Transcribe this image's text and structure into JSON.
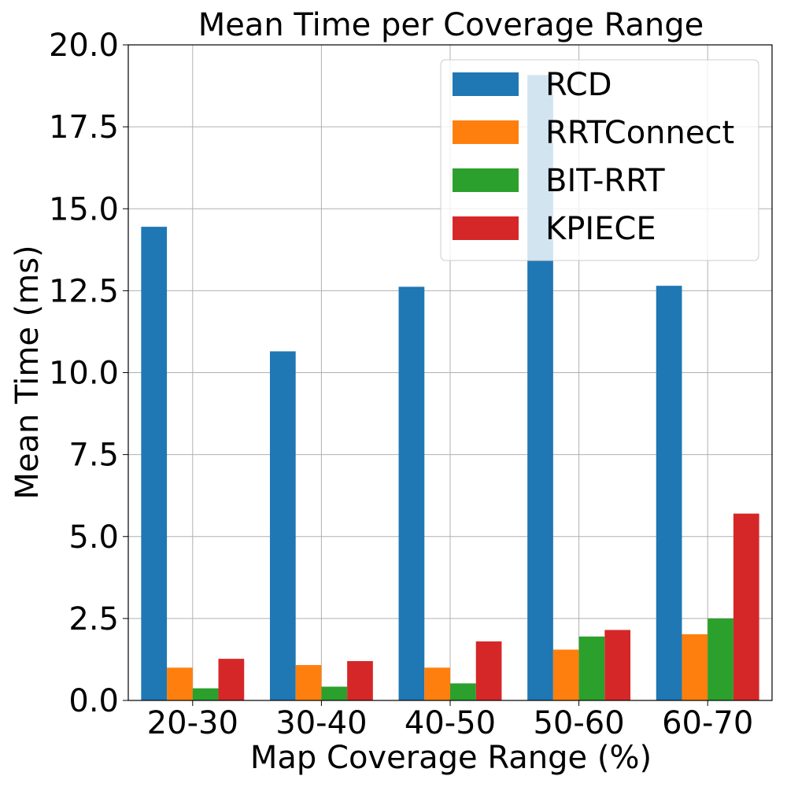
{
  "chart_data": {
    "type": "bar",
    "title": "Mean Time per Coverage Range",
    "xlabel": "Map Coverage Range (%)",
    "ylabel": "Mean Time (ms)",
    "categories": [
      "20-30",
      "30-40",
      "40-50",
      "50-60",
      "60-70"
    ],
    "ylim": [
      0,
      20
    ],
    "yticks": [
      "0.0",
      "2.5",
      "5.0",
      "7.5",
      "10.0",
      "12.5",
      "15.0",
      "17.5",
      "20.0"
    ],
    "grid": true,
    "legend_position": "top-right",
    "series": [
      {
        "name": "RCD",
        "color": "#1f77b4",
        "values": [
          14.45,
          10.65,
          12.62,
          19.08,
          12.65
        ]
      },
      {
        "name": "RRTConnect",
        "color": "#ff7f0e",
        "values": [
          1.0,
          1.08,
          1.0,
          1.55,
          2.02
        ]
      },
      {
        "name": "BIT-RRT",
        "color": "#2ca02c",
        "values": [
          0.37,
          0.42,
          0.52,
          1.95,
          2.5
        ]
      },
      {
        "name": "KPIECE",
        "color": "#d62728",
        "values": [
          1.27,
          1.2,
          1.8,
          2.15,
          5.7
        ]
      }
    ]
  }
}
